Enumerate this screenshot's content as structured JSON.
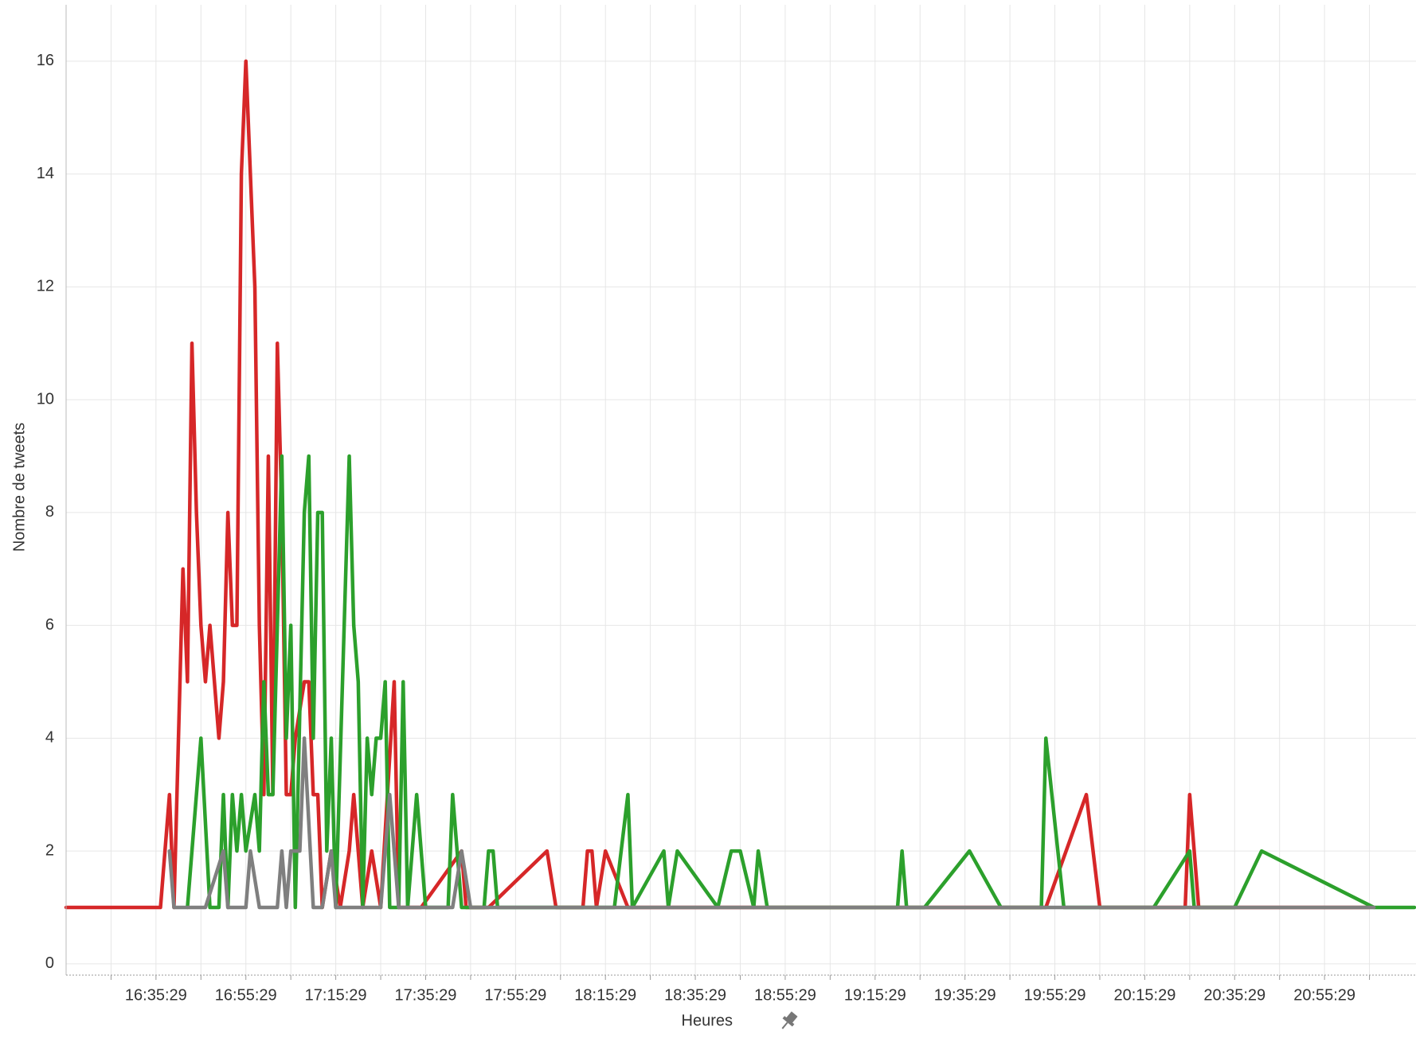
{
  "chart_data": {
    "type": "line",
    "x_label": "Heures",
    "y_label": "Nombre de tweets",
    "xlim": [
      "16:15:29",
      "21:15:29"
    ],
    "ylim": [
      -0.2,
      17
    ],
    "yticks": [
      0,
      2,
      4,
      6,
      8,
      10,
      12,
      14,
      16
    ],
    "xticks": [
      "16:35:29",
      "16:55:29",
      "17:15:29",
      "17:35:29",
      "17:55:29",
      "18:15:29",
      "18:35:29",
      "18:55:29",
      "19:15:29",
      "19:35:29",
      "19:55:29",
      "20:15:29",
      "20:35:29",
      "20:55:29"
    ],
    "xgrid": [
      "16:25:29",
      "16:35:29",
      "16:45:29",
      "16:55:29",
      "17:05:29",
      "17:15:29",
      "17:25:29",
      "17:35:29",
      "17:45:29",
      "17:55:29",
      "18:05:29",
      "18:15:29",
      "18:25:29",
      "18:35:29",
      "18:45:29",
      "18:55:29",
      "19:05:29",
      "19:15:29",
      "19:25:29",
      "19:35:29",
      "19:45:29",
      "19:55:29",
      "20:05:29",
      "20:15:29",
      "20:25:29",
      "20:35:29",
      "20:45:29",
      "20:55:29",
      "21:05:29"
    ],
    "grid": true,
    "series": [
      {
        "color": "#d62728",
        "x": [
          "16:15:29",
          "16:36:29",
          "16:38:29",
          "16:39:29",
          "16:41:29",
          "16:42:29",
          "16:43:29",
          "16:44:29",
          "16:45:29",
          "16:46:29",
          "16:47:29",
          "16:49:29",
          "16:50:29",
          "16:51:29",
          "16:52:29",
          "16:53:29",
          "16:54:29",
          "16:55:29",
          "16:57:29",
          "16:58:29",
          "16:59:29",
          "17:00:29",
          "17:01:29",
          "17:02:29",
          "17:03:29",
          "17:04:29",
          "17:05:29",
          "17:06:29",
          "17:08:29",
          "17:09:29",
          "17:10:29",
          "17:11:29",
          "17:12:29",
          "17:14:29",
          "17:16:29",
          "17:18:29",
          "17:19:29",
          "17:21:29",
          "17:23:29",
          "17:25:29",
          "17:28:29",
          "17:29:29",
          "17:34:29",
          "17:43:29",
          "17:44:29",
          "17:49:29",
          "18:02:29",
          "18:04:29",
          "18:10:29",
          "18:11:29",
          "18:12:29",
          "18:13:29",
          "18:15:29",
          "18:20:29",
          "19:53:29",
          "20:02:29",
          "20:05:29",
          "20:24:29",
          "20:25:29",
          "20:27:29",
          "21:05:29"
        ],
        "values": [
          1,
          1,
          3,
          1,
          7,
          5,
          11,
          8,
          6,
          5,
          6,
          4,
          5,
          8,
          6,
          6,
          14,
          16,
          12,
          6,
          3,
          9,
          3,
          11,
          8,
          3,
          3,
          4,
          5,
          5,
          3,
          3,
          1,
          2,
          1,
          2,
          3,
          1,
          2,
          1,
          5,
          1,
          1,
          2,
          1,
          1,
          2,
          1,
          1,
          2,
          2,
          1,
          2,
          1,
          1,
          3,
          1,
          1,
          3,
          1,
          1
        ]
      },
      {
        "color": "#2ca02c",
        "x": [
          "16:42:29",
          "16:44:29",
          "16:45:29",
          "16:47:29",
          "16:49:29",
          "16:50:29",
          "16:51:29",
          "16:52:29",
          "16:53:29",
          "16:54:29",
          "16:55:29",
          "16:57:29",
          "16:58:29",
          "16:59:29",
          "17:00:29",
          "17:01:29",
          "17:03:29",
          "17:04:29",
          "17:05:29",
          "17:06:29",
          "17:08:29",
          "17:09:29",
          "17:10:29",
          "17:11:29",
          "17:12:29",
          "17:13:29",
          "17:14:29",
          "17:15:29",
          "17:18:29",
          "17:19:29",
          "17:20:29",
          "17:21:29",
          "17:22:29",
          "17:23:29",
          "17:24:29",
          "17:25:29",
          "17:26:29",
          "17:27:29",
          "17:29:29",
          "17:30:29",
          "17:31:29",
          "17:33:29",
          "17:35:29",
          "17:40:29",
          "17:41:29",
          "17:43:29",
          "17:48:29",
          "17:49:29",
          "17:50:29",
          "17:51:29",
          "18:17:29",
          "18:20:29",
          "18:21:29",
          "18:28:29",
          "18:29:29",
          "18:31:29",
          "18:40:29",
          "18:43:29",
          "18:45:29",
          "18:48:29",
          "18:49:29",
          "18:51:29",
          "19:20:29",
          "19:21:29",
          "19:22:29",
          "19:26:29",
          "19:36:29",
          "19:43:29",
          "19:52:29",
          "19:53:29",
          "19:57:29",
          "20:17:29",
          "20:25:29",
          "20:26:29",
          "20:35:29",
          "20:41:29",
          "21:06:29",
          "21:15:29"
        ],
        "values": [
          1,
          3,
          4,
          1,
          1,
          3,
          1,
          3,
          2,
          3,
          2,
          3,
          2,
          5,
          3,
          3,
          9,
          4,
          6,
          1,
          8,
          9,
          4,
          8,
          8,
          2,
          4,
          1,
          9,
          6,
          5,
          1,
          4,
          3,
          4,
          4,
          5,
          1,
          1,
          5,
          1,
          3,
          1,
          1,
          3,
          1,
          1,
          2,
          2,
          1,
          1,
          3,
          1,
          2,
          1,
          2,
          1,
          2,
          2,
          1,
          2,
          1,
          1,
          2,
          1,
          1,
          2,
          1,
          1,
          4,
          1,
          1,
          2,
          1,
          1,
          2,
          1,
          1
        ]
      },
      {
        "color": "#7f7f7f",
        "x": [
          "16:38:29",
          "16:39:29",
          "16:46:29",
          "16:50:29",
          "16:51:29",
          "16:55:29",
          "16:56:29",
          "16:58:29",
          "17:02:29",
          "17:03:29",
          "17:04:29",
          "17:05:29",
          "17:07:29",
          "17:08:29",
          "17:10:29",
          "17:12:29",
          "17:14:29",
          "17:15:29",
          "17:25:29",
          "17:27:29",
          "17:29:29",
          "17:41:29",
          "17:43:29",
          "17:45:29",
          "21:06:29"
        ],
        "values": [
          2,
          1,
          1,
          2,
          1,
          1,
          2,
          1,
          1,
          2,
          1,
          2,
          2,
          4,
          1,
          1,
          2,
          1,
          1,
          3,
          1,
          1,
          2,
          1,
          1
        ]
      }
    ]
  }
}
